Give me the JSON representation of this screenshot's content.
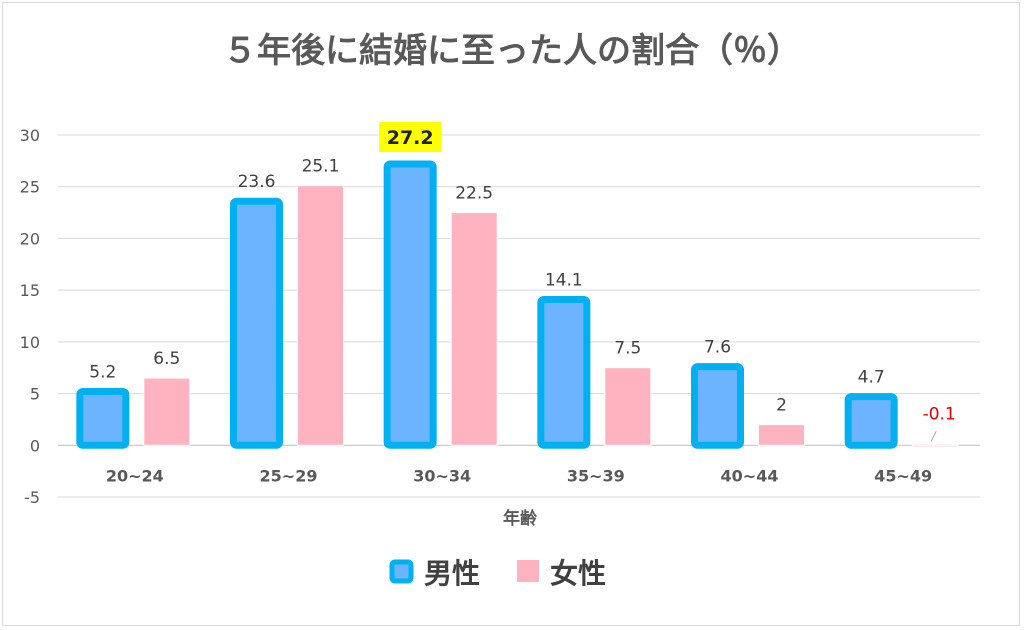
{
  "chart_data": {
    "type": "bar",
    "title": "５年後に結婚に至った人の割合（％）",
    "xlabel": "年齢",
    "ylabel": "",
    "categories": [
      "20~24",
      "25~29",
      "30~34",
      "35~39",
      "40~44",
      "45~49"
    ],
    "series": [
      {
        "name": "男性",
        "values": [
          5.2,
          23.6,
          27.2,
          14.1,
          7.6,
          4.7
        ],
        "color": "#6cb4ff",
        "border": "#00b0f0"
      },
      {
        "name": "女性",
        "values": [
          6.5,
          25.1,
          22.5,
          7.5,
          2,
          -0.1
        ],
        "color": "#ffb3c1"
      }
    ],
    "ylim": [
      -5,
      30
    ],
    "yticks": [
      -5,
      0,
      5,
      10,
      15,
      20,
      25,
      30
    ],
    "grid": true,
    "legend": "bottom",
    "highlight": {
      "series": 0,
      "index": 2,
      "background": "#ffff00"
    },
    "negative_label_color": "#e00000"
  }
}
